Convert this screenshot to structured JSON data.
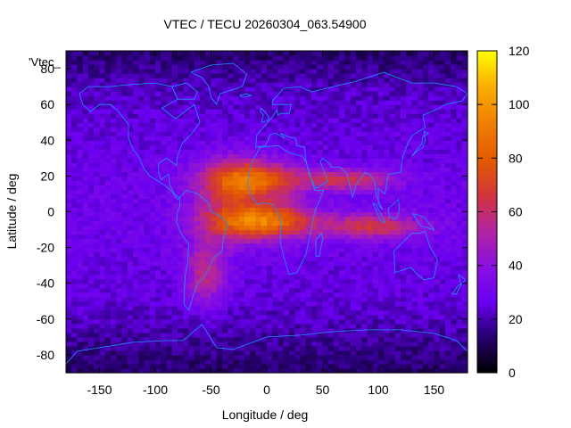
{
  "chart_data": {
    "type": "heatmap",
    "title": "VTEC / TECU 20260304_063.54900",
    "xlabel": "Longitude / deg",
    "ylabel": "Latitude / deg",
    "key_label": "'Vtec_",
    "xlim": [
      -180,
      180
    ],
    "ylim": [
      -90,
      90
    ],
    "x_ticks": [
      -150,
      -100,
      -50,
      0,
      50,
      100,
      150
    ],
    "y_ticks": [
      -80,
      -60,
      -40,
      -20,
      0,
      20,
      40,
      60,
      80
    ],
    "colorbar": {
      "min": 0,
      "max": 120,
      "ticks": [
        0,
        20,
        40,
        60,
        80,
        100,
        120
      ]
    },
    "colors": {
      "coastline": "#1e90ff",
      "palette": "black-blue-purple-red-orange-yellow"
    },
    "features": [
      {
        "name": "anomaly-equatorial-crest-north",
        "lon": -15,
        "lat": 18,
        "peak_tecu": 85
      },
      {
        "name": "anomaly-equatorial-crest-south",
        "lon": -10,
        "lat": -5,
        "peak_tecu": 95
      },
      {
        "name": "band-asia-north",
        "lon": 90,
        "lat": 15,
        "peak_tecu": 62
      },
      {
        "name": "band-asia-south",
        "lon": 100,
        "lat": -8,
        "peak_tecu": 60
      },
      {
        "name": "south-america-plume",
        "lon": -55,
        "lat": -35,
        "peak_tecu": 60
      },
      {
        "name": "background",
        "tecu": 20
      }
    ]
  }
}
